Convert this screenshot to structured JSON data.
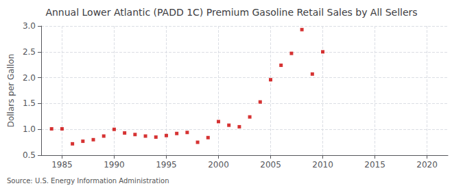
{
  "chart_data": {
    "type": "scatter",
    "title": "Annual Lower Atlantic (PADD 1C) Premium Gasoline Retail Sales by All Sellers",
    "ylabel": "Dollars per Gallon",
    "source": "Source: U.S. Energy Information Administration",
    "x": [
      1984,
      1985,
      1986,
      1987,
      1988,
      1989,
      1990,
      1991,
      1992,
      1993,
      1994,
      1995,
      1996,
      1997,
      1998,
      1999,
      2000,
      2001,
      2002,
      2003,
      2004,
      2005,
      2006,
      2007,
      2008,
      2009,
      2010
    ],
    "values": [
      1.01,
      1.01,
      0.72,
      0.77,
      0.8,
      0.87,
      1.0,
      0.93,
      0.9,
      0.87,
      0.85,
      0.88,
      0.92,
      0.94,
      0.75,
      0.84,
      1.15,
      1.08,
      1.05,
      1.24,
      1.53,
      1.96,
      2.24,
      2.47,
      2.93,
      2.07,
      2.5
    ],
    "color": "#cc0000",
    "marker": "square",
    "xlim": [
      1983,
      2022
    ],
    "ylim": [
      0.5,
      3.0
    ],
    "xticks": [
      1985,
      1990,
      1995,
      2000,
      2005,
      2010,
      2015,
      2020
    ],
    "yticks": [
      0.5,
      {
        "value": 1.0,
        "label": "1.0"
      },
      1.5,
      {
        "value": 2.0,
        "label": "2.0"
      },
      2.5,
      {
        "value": 3.0,
        "label": "3.0"
      }
    ],
    "grid": true
  }
}
